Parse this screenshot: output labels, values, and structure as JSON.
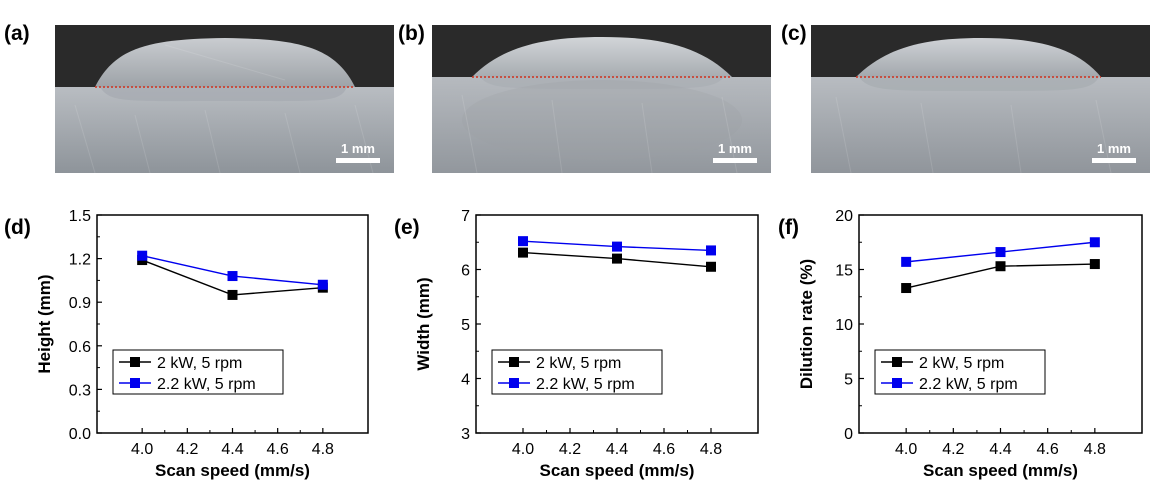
{
  "figure": {
    "panels": [
      {
        "label": "(a)",
        "scale_bar": "1 mm"
      },
      {
        "label": "(b)",
        "scale_bar": "1 mm"
      },
      {
        "label": "(c)",
        "scale_bar": "1 mm"
      }
    ]
  },
  "chart_data": [
    {
      "panel": "(d)",
      "type": "line",
      "xlabel": "Scan speed (mm/s)",
      "ylabel": "Height (mm)",
      "x": [
        4.0,
        4.4,
        4.8
      ],
      "xticks": [
        "4.0",
        "4.2",
        "4.4",
        "4.6",
        "4.8"
      ],
      "xtick_values": [
        4.0,
        4.2,
        4.4,
        4.6,
        4.8
      ],
      "xlim": [
        3.8,
        5.0
      ],
      "yticks": [
        "0.0",
        "0.3",
        "0.6",
        "0.9",
        "1.2",
        "1.5"
      ],
      "ytick_values": [
        0.0,
        0.3,
        0.6,
        0.9,
        1.2,
        1.5
      ],
      "ylim": [
        0.0,
        1.5
      ],
      "legend_placement": "lower-left",
      "series": [
        {
          "name": "2 kW, 5 rpm",
          "color": "#000000",
          "values": [
            1.19,
            0.95,
            1.0
          ]
        },
        {
          "name": "2.2 kW, 5 rpm",
          "color": "#0000ee",
          "values": [
            1.22,
            1.08,
            1.02
          ]
        }
      ]
    },
    {
      "panel": "(e)",
      "type": "line",
      "xlabel": "Scan speed (mm/s)",
      "ylabel": "Width (mm)",
      "x": [
        4.0,
        4.4,
        4.8
      ],
      "xticks": [
        "4.0",
        "4.2",
        "4.4",
        "4.6",
        "4.8"
      ],
      "xtick_values": [
        4.0,
        4.2,
        4.4,
        4.6,
        4.8
      ],
      "xlim": [
        3.8,
        5.0
      ],
      "yticks": [
        "3",
        "4",
        "5",
        "6",
        "7"
      ],
      "ytick_values": [
        3,
        4,
        5,
        6,
        7
      ],
      "ylim": [
        3,
        7
      ],
      "legend_placement": "lower-left",
      "series": [
        {
          "name": "2 kW, 5 rpm",
          "color": "#000000",
          "values": [
            6.31,
            6.2,
            6.05
          ]
        },
        {
          "name": "2.2 kW, 5 rpm",
          "color": "#0000ee",
          "values": [
            6.52,
            6.42,
            6.35
          ]
        }
      ]
    },
    {
      "panel": "(f)",
      "type": "line",
      "xlabel": "Scan speed (mm/s)",
      "ylabel": "Dilution rate (%)",
      "x": [
        4.0,
        4.4,
        4.8
      ],
      "xticks": [
        "4.0",
        "4.2",
        "4.4",
        "4.6",
        "4.8"
      ],
      "xtick_values": [
        4.0,
        4.2,
        4.4,
        4.6,
        4.8
      ],
      "xlim": [
        3.8,
        5.0
      ],
      "yticks": [
        "0",
        "5",
        "10",
        "15",
        "20"
      ],
      "ytick_values": [
        0,
        5,
        10,
        15,
        20
      ],
      "ylim": [
        0,
        20
      ],
      "legend_placement": "lower-left",
      "series": [
        {
          "name": "2 kW, 5 rpm",
          "color": "#000000",
          "values": [
            13.3,
            15.3,
            15.5
          ]
        },
        {
          "name": "2.2 kW, 5 rpm",
          "color": "#0000ee",
          "values": [
            15.7,
            16.6,
            17.5
          ]
        }
      ]
    }
  ]
}
